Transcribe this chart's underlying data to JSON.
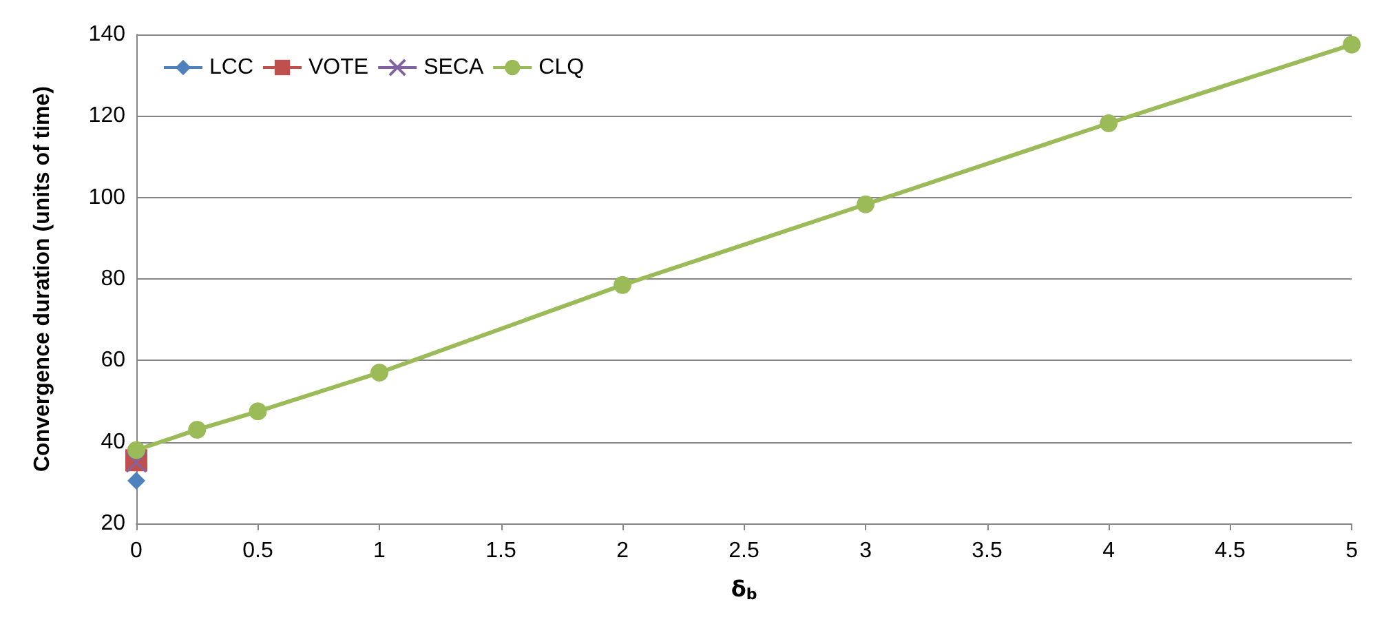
{
  "chart_data": {
    "type": "line",
    "xlabel": "δ$_{b}$",
    "ylabel": "Convergence duration (units of time)",
    "xlim": [
      0,
      5
    ],
    "xticks": [
      0,
      0.5,
      1,
      1.5,
      2,
      2.5,
      3,
      3.5,
      4,
      4.5,
      5
    ],
    "ylim": [
      20,
      140
    ],
    "yticks": [
      20,
      40,
      60,
      80,
      100,
      120,
      140
    ],
    "grid": "y",
    "legend": "top left",
    "series": [
      {
        "name": "LCC",
        "color": "#4f81bd",
        "marker": "diamond",
        "x": [
          0
        ],
        "values": [
          30.5
        ]
      },
      {
        "name": "VOTE",
        "color": "#c0504d",
        "marker": "square",
        "x": [
          0
        ],
        "values": [
          35.5
        ]
      },
      {
        "name": "SECA",
        "color": "#8064a2",
        "marker": "cross",
        "x": [
          0
        ],
        "values": [
          35
        ]
      },
      {
        "name": "CLQ",
        "color": "#9bbb59",
        "marker": "circle",
        "x": [
          0,
          0.25,
          0.5,
          1,
          2,
          3,
          4,
          5
        ],
        "values": [
          38,
          43,
          47.5,
          57,
          78.5,
          98.3,
          118.2,
          137.5
        ]
      }
    ]
  }
}
